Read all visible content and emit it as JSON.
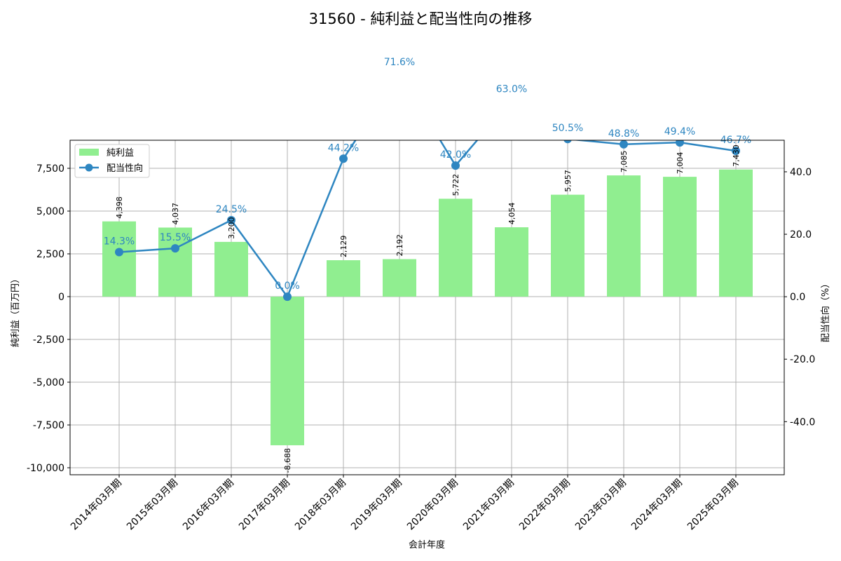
{
  "chart_data": {
    "type": "bar+line",
    "title": "31560 - 純利益と配当性向の推移",
    "xlabel": "会計年度",
    "ylabel_left": "純利益（百万円）",
    "ylabel_right": "配当性向（%）",
    "categories": [
      "2014年03月期",
      "2015年03月期",
      "2016年03月期",
      "2017年03月期",
      "2018年03月期",
      "2019年03月期",
      "2020年03月期",
      "2021年03月期",
      "2022年03月期",
      "2023年03月期",
      "2024年03月期",
      "2025年03月期"
    ],
    "series": [
      {
        "name": "純利益",
        "type": "bar",
        "color": "#90EE90",
        "values": [
          4398,
          4037,
          3200,
          -8688,
          2129,
          2192,
          5722,
          4054,
          5957,
          7085,
          7004,
          7430
        ],
        "labels": [
          "4,398",
          "4,037",
          "3,200",
          "-8,688",
          "2,129",
          "2,192",
          "5,722",
          "4,054",
          "5,957",
          "7,085",
          "7,004",
          "7,430"
        ]
      },
      {
        "name": "配当性向",
        "type": "line",
        "color": "#2E86C1",
        "values": [
          14.3,
          15.5,
          24.5,
          0.0,
          44.2,
          71.6,
          42.0,
          63.0,
          50.5,
          48.8,
          49.4,
          46.7
        ],
        "labels": [
          "14.3%",
          "15.5%",
          "24.5%",
          "0.0%",
          "44.2%",
          "71.6%",
          "42.0%",
          "63.0%",
          "50.5%",
          "48.8%",
          "49.4%",
          "46.7%"
        ]
      }
    ],
    "ylim_left": [
      -10410,
      9140
    ],
    "ylim_right": [
      -57,
      50.1
    ],
    "yticks_left": [
      {
        "v": -10000,
        "t": "-10,000"
      },
      {
        "v": -7500,
        "t": "-7,500"
      },
      {
        "v": -5000,
        "t": "-5,000"
      },
      {
        "v": -2500,
        "t": "-2,500"
      },
      {
        "v": 0,
        "t": "0"
      },
      {
        "v": 2500,
        "t": "2,500"
      },
      {
        "v": 5000,
        "t": "5,000"
      },
      {
        "v": 7500,
        "t": "7,500"
      }
    ],
    "yticks_right": [
      {
        "v": -40,
        "t": "-40.0"
      },
      {
        "v": -20,
        "t": "-20.0"
      },
      {
        "v": 0,
        "t": "0.0"
      },
      {
        "v": 20,
        "t": "20.0"
      },
      {
        "v": 40,
        "t": "40.0"
      }
    ],
    "grid": true,
    "legend": "top-left"
  }
}
